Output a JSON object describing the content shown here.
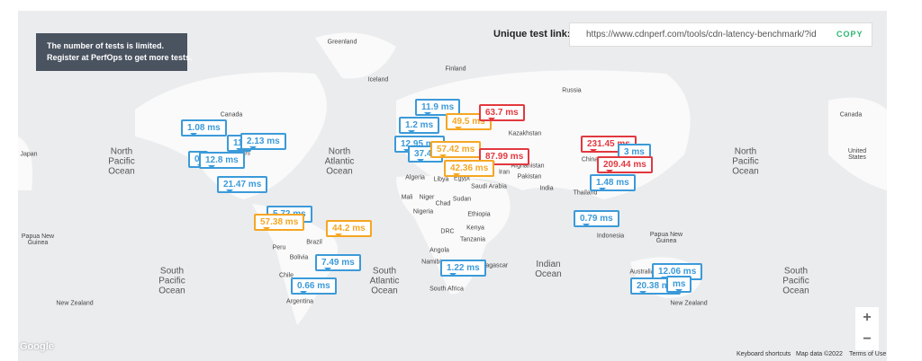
{
  "notice": {
    "lines": [
      "The number of tests is limited.",
      "Register at PerfOps to get more tests."
    ]
  },
  "link": {
    "label": "Unique test link:",
    "url": "https://www.cdnperf.com/tools/cdn-latency-benchmark/?id",
    "button": "COPY"
  },
  "map": {
    "oceans": [
      "North Pacific Ocean",
      "North Atlantic Ocean",
      "North Pacific Ocean",
      "South Pacific Ocean",
      "South Atlantic Ocean",
      "Indian Ocean",
      "South Pacific Ocean"
    ],
    "places": [
      "Greenland",
      "Iceland",
      "Finland",
      "Russia",
      "Canada",
      "Canada",
      "Japan",
      "States",
      "United States",
      "Kazakhstan",
      "Afghanistan",
      "Iran",
      "Pakistan",
      "India",
      "China",
      "Thailand",
      "Algeria",
      "Libya",
      "Egypt",
      "Saudi Arabia",
      "Mali",
      "Niger",
      "Sudan",
      "Chad",
      "Nigeria",
      "Ethiopia",
      "DRC",
      "Kenya",
      "Tanzania",
      "Angola",
      "Namibia",
      "Madagascar",
      "South Africa",
      "Peru",
      "Brazil",
      "Bolivia",
      "Chile",
      "Argentina",
      "Papua New Guinea",
      "Papua New Guinea",
      "Indonesia",
      "Australia",
      "New Zealand",
      "New Zealand"
    ],
    "markers": [
      {
        "label": "1.08 ms",
        "color": "#3b9ad9"
      },
      {
        "label": "11.",
        "color": "#3b9ad9"
      },
      {
        "label": "2.13 ms",
        "color": "#3b9ad9"
      },
      {
        "label": "0.",
        "color": "#3b9ad9"
      },
      {
        "label": "12.8 ms",
        "color": "#3b9ad9"
      },
      {
        "label": "21.47 ms",
        "color": "#3b9ad9"
      },
      {
        "label": "5.72 ms",
        "color": "#3b9ad9"
      },
      {
        "label": "57.38 ms",
        "color": "#f5a623"
      },
      {
        "label": "44.2 ms",
        "color": "#f5a623"
      },
      {
        "label": "7.49 ms",
        "color": "#3b9ad9"
      },
      {
        "label": "0.66 ms",
        "color": "#3b9ad9"
      },
      {
        "label": "11.9 ms",
        "color": "#3b9ad9"
      },
      {
        "label": "49.5 ms",
        "color": "#f5a623"
      },
      {
        "label": "63.7 ms",
        "color": "#e2383f"
      },
      {
        "label": "1.2 ms",
        "color": "#3b9ad9"
      },
      {
        "label": "12.95 ms",
        "color": "#3b9ad9"
      },
      {
        "label": "37.47",
        "color": "#3b9ad9"
      },
      {
        "label": "57.42 ms",
        "color": "#f5a623"
      },
      {
        "label": "87.99 ms",
        "color": "#e2383f"
      },
      {
        "label": "42.36 ms",
        "color": "#f5a623"
      },
      {
        "label": "231.45 ms",
        "color": "#e2383f"
      },
      {
        "label": "3 ms",
        "color": "#3b9ad9"
      },
      {
        "label": "209.44 ms",
        "color": "#e2383f"
      },
      {
        "label": "1.48 ms",
        "color": "#3b9ad9"
      },
      {
        "label": "0.79 ms",
        "color": "#3b9ad9"
      },
      {
        "label": "1.22 ms",
        "color": "#3b9ad9"
      },
      {
        "label": "12.06 ms",
        "color": "#3b9ad9"
      },
      {
        "label": "20.38 ms",
        "color": "#3b9ad9"
      },
      {
        "label": "ms",
        "color": "#3b9ad9"
      }
    ],
    "logo": "Google",
    "zoom": [
      "+",
      "−"
    ],
    "attribution": [
      "Keyboard shortcuts",
      "Map data ©2022",
      "Terms of Use"
    ]
  }
}
